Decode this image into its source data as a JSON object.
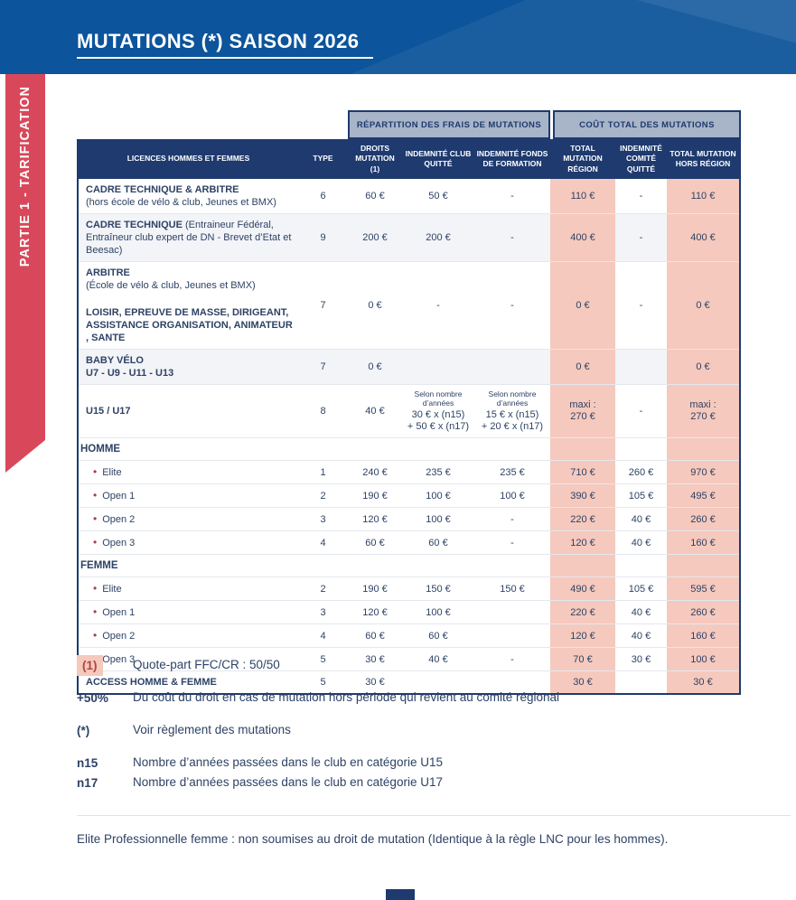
{
  "header": {
    "title": "MUTATIONS (*) SAISON 2026"
  },
  "sidebar": {
    "label": "PARTIE 1 - TARIFICATION"
  },
  "table": {
    "group_headers": [
      "RÉPARTITION DES FRAIS DE MUTATIONS",
      "COÛT TOTAL DES MUTATIONS"
    ],
    "col_headers": [
      "LICENCES HOMMES ET FEMMES",
      "TYPE",
      "DROITS MUTATION (1)",
      "INDEMNITÉ CLUB QUITTÉ",
      "INDEMNITÉ FONDS DE FORMATION",
      "TOTAL MUTATION RÉGION",
      "INDEMNITÉ COMITÉ QUITTÉ",
      "TOTAL MUTATION HORS RÉGION"
    ],
    "rows": [
      {
        "label": [
          {
            "t": "CADRE TECHNIQUE & ARBITRE",
            "b": 1
          },
          {
            "br": 1
          },
          {
            "t": "(hors école de vélo & club, Jeunes et BMX)"
          }
        ],
        "type": "6",
        "cells": [
          "60 €",
          "50 €",
          "-",
          "110 €",
          "-",
          "110 €"
        ]
      },
      {
        "shade": 1,
        "label": [
          {
            "t": "CADRE TECHNIQUE ",
            "b": 1
          },
          {
            "t": "(Entraineur Fédéral, Entraîneur club expert de DN - Brevet d’Etat et Beesac)"
          }
        ],
        "type": "9",
        "cells": [
          "200 €",
          "200 €",
          "-",
          "400 €",
          "-",
          "400 €"
        ]
      },
      {
        "label": [
          {
            "t": "ARBITRE",
            "b": 1
          },
          {
            "br": 1
          },
          {
            "t": "(École de vélo & club, Jeunes et BMX)"
          },
          {
            "gap": 1
          },
          {
            "t": "LOISIR, EPREUVE DE MASSE, DIRIGEANT, ASSISTANCE ORGANISATION, ANIMATEUR , SANTE",
            "b": 1
          }
        ],
        "type": "7",
        "cells": [
          "0 €",
          "-",
          "-",
          "0 €",
          "-",
          "0 €"
        ]
      },
      {
        "shade": 1,
        "label": [
          {
            "t": "BABY VÉLO",
            "b": 1
          },
          {
            "br": 1
          },
          {
            "t": "U7 - U9 - U11 - U13",
            "b": 1
          }
        ],
        "type": "7",
        "cells": [
          "0 €",
          "",
          "",
          "0 €",
          "",
          "0 €"
        ]
      },
      {
        "label": [
          {
            "t": "U15 / U17",
            "b": 1
          }
        ],
        "type": "8",
        "cells": [
          "40 €",
          {
            "small": "Selon nombre d’années",
            "lines": [
              "30 € x (n15)",
              "+ 50 € x (n17)"
            ]
          },
          {
            "small": "Selon nombre d’années",
            "lines": [
              "15 € x (n15)",
              "+ 20 € x (n17)"
            ]
          },
          {
            "lines": [
              "maxi :",
              "270 €"
            ]
          },
          "-",
          {
            "lines": [
              "maxi :",
              "270 €"
            ]
          }
        ]
      },
      {
        "section": 1,
        "label": [
          {
            "t": "HOMME",
            "b": 1
          }
        ],
        "type": "",
        "cells": [
          "",
          "",
          "",
          "",
          "",
          ""
        ]
      },
      {
        "bullet": 1,
        "label": [
          {
            "t": "Elite"
          }
        ],
        "type": "1",
        "cells": [
          "240 €",
          "235 €",
          "235 €",
          "710 €",
          "260 €",
          "970 €"
        ]
      },
      {
        "bullet": 1,
        "label": [
          {
            "t": "Open 1"
          }
        ],
        "type": "2",
        "cells": [
          "190 €",
          "100 €",
          "100 €",
          "390 €",
          "105 €",
          "495 €"
        ]
      },
      {
        "bullet": 1,
        "label": [
          {
            "t": "Open 2"
          }
        ],
        "type": "3",
        "cells": [
          "120 €",
          "100 €",
          "-",
          "220 €",
          "40 €",
          "260 €"
        ]
      },
      {
        "bullet": 1,
        "label": [
          {
            "t": "Open 3"
          }
        ],
        "type": "4",
        "cells": [
          "60 €",
          "60 €",
          "-",
          "120 €",
          "40 €",
          "160 €"
        ]
      },
      {
        "section": 1,
        "label": [
          {
            "t": "FEMME",
            "b": 1
          }
        ],
        "type": "",
        "cells": [
          "",
          "",
          "",
          "",
          "",
          ""
        ]
      },
      {
        "bullet": 1,
        "label": [
          {
            "t": "Elite"
          }
        ],
        "type": "2",
        "cells": [
          "190 €",
          "150 €",
          "150 €",
          "490 €",
          "105 €",
          "595 €"
        ]
      },
      {
        "bullet": 1,
        "label": [
          {
            "t": "Open 1"
          }
        ],
        "type": "3",
        "cells": [
          "120 €",
          "100 €",
          "",
          "220 €",
          "40 €",
          "260 €"
        ]
      },
      {
        "bullet": 1,
        "label": [
          {
            "t": "Open 2"
          }
        ],
        "type": "4",
        "cells": [
          "60 €",
          "60 €",
          "",
          "120 €",
          "40 €",
          "160 €"
        ]
      },
      {
        "bullet": 1,
        "label": [
          {
            "t": "Open 3"
          }
        ],
        "type": "5",
        "cells": [
          "30 €",
          "40 €",
          "-",
          "70 €",
          "30 €",
          "100 €"
        ]
      },
      {
        "label": [
          {
            "t": "ACCESS HOMME & FEMME",
            "b": 1
          }
        ],
        "type": "5",
        "cells": [
          "30 €",
          "",
          "",
          "30 €",
          "",
          "30 €"
        ]
      }
    ]
  },
  "notes": [
    {
      "label": "(1)",
      "highlight": true,
      "text": "Quote-part FFC/CR : 50/50"
    },
    {
      "label": "+50%",
      "text": "Du coût du droit en cas de mutation hors période qui revient au comité régional"
    },
    {
      "label": "(*)",
      "text": "Voir règlement des mutations"
    },
    {
      "label": "n15",
      "text": "Nombre d’années passées dans le club en catégorie U15"
    },
    {
      "label": "n17",
      "text": "Nombre d’années passées dans le club en catégorie U17"
    }
  ],
  "final_note": "Elite Professionnelle femme : non soumises au droit de mutation (Identique à la règle LNC pour les hommes).",
  "colors": {
    "header_blue": "#0c549b",
    "table_header_navy": "#1e3a6e",
    "group_header_bg": "#a8b4c8",
    "highlight_pink": "#f5c9bd",
    "ribbon_red": "#d9485a",
    "text_navy": "#2e4265",
    "bullet_red": "#a63d4a"
  }
}
